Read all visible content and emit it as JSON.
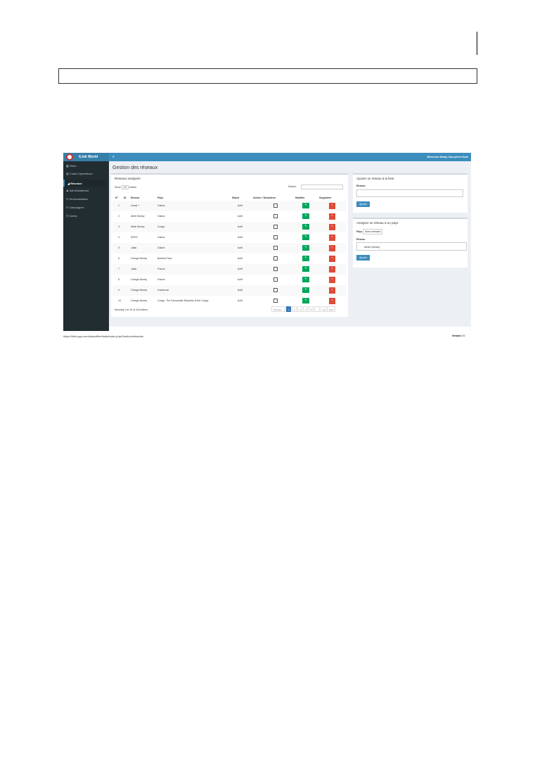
{
  "app": {
    "brand": "iLink World",
    "welcome": "Bienvenue Beaky Jean-pierre Bush",
    "page_title": "Gestion des réseaux",
    "url": "https://ilink-app.com/backoffice/beta/index.php/Gestion/networks",
    "version_label": "Version",
    "version_value": "2.0"
  },
  "sidebar": {
    "items": [
      {
        "label": "Villes",
        "icon": "grid-icon"
      },
      {
        "label": "Codes Opérateurs",
        "icon": "table-icon"
      },
      {
        "label": "Réseaux",
        "icon": "chart-icon",
        "active": true
      },
      {
        "label": "Administrateurs",
        "icon": "user-icon"
      },
      {
        "label": "Géolocalisation",
        "icon": "map-pin-icon"
      },
      {
        "label": "Campagnes",
        "icon": "map-pin-icon"
      },
      {
        "label": "Cartes",
        "icon": "map-pin-icon"
      }
    ]
  },
  "networks_panel": {
    "title": "Réseaux assignés",
    "show_label": "Show",
    "show_value": "10",
    "entries_label": "entries",
    "search_label": "Search:",
    "columns": [
      "N°",
      "ID",
      "Réseau",
      "Pays",
      "Statut",
      "Activer / Désactiver",
      "Modifier",
      "Supprimer"
    ],
    "rows": [
      {
        "n": "1",
        "reseau": "Canal +",
        "pays": "Gabon",
        "statut": "Actif"
      },
      {
        "n": "2",
        "reseau": "Airtel Money",
        "pays": "Gabon",
        "statut": "Actif"
      },
      {
        "n": "3",
        "reseau": "Airtel Money",
        "pays": "Congo",
        "statut": "Actif"
      },
      {
        "n": "4",
        "reseau": "SEEG",
        "pays": "Gabon",
        "statut": "Actif"
      },
      {
        "n": "5",
        "reseau": "Jalas",
        "pays": "Gabon",
        "statut": "Actif"
      },
      {
        "n": "6",
        "reseau": "Orange Money",
        "pays": "Burkina Faso",
        "statut": "Actif"
      },
      {
        "n": "7",
        "reseau": "Jalas",
        "pays": "France",
        "statut": "Actif"
      },
      {
        "n": "8",
        "reseau": "Orange Money",
        "pays": "France",
        "statut": "Actif"
      },
      {
        "n": "9",
        "reseau": "Orange Money",
        "pays": "Cameroun",
        "statut": "Actif"
      },
      {
        "n": "10",
        "reseau": "Orange Money",
        "pays": "Congo, The Democratic Republic of the Congo",
        "statut": "Actif"
      }
    ],
    "info": "Showing 1 to 10 of 115 entries",
    "pagination": [
      "Previous",
      "1",
      "2",
      "3",
      "4",
      "5",
      "...",
      "12",
      "Next"
    ]
  },
  "add_panel": {
    "title": "Ajouter un réseau à la liste",
    "field_label": "Réseau",
    "field_value": "",
    "button": "Ajouter"
  },
  "assign_panel": {
    "title": "Assigner un réseau à un pays",
    "pays_label": "Pays",
    "pays_value": "None selected",
    "reseau_label": "Réseau",
    "reseau_value": "Airtel Money",
    "button": "Ajouter"
  },
  "colors": {
    "header": "#3c8dbc",
    "sidebar": "#222d32",
    "edit": "#00a65a",
    "delete": "#dd4b39"
  }
}
